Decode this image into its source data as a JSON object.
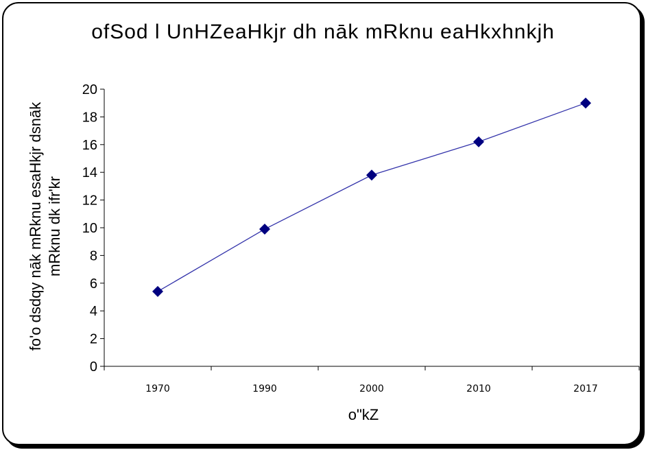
{
  "chart_data": {
    "type": "line",
    "title": "ofSod l UnHZeaHkjr dh nāk mRknu eaHkxhnkjh",
    "xlabel": "o\"kZ",
    "ylabel_lines": [
      "fo'o dsdqy nāk mRknu esaHkjr dsnāk",
      "mRknu dk ifr'kr"
    ],
    "categories": [
      "1970",
      "1990",
      "2000",
      "2010",
      "2017"
    ],
    "series": [
      {
        "values": [
          5.4,
          9.9,
          13.8,
          16.2,
          19.0
        ]
      }
    ],
    "ylim": [
      0,
      20
    ],
    "yticks": [
      0,
      2,
      4,
      6,
      8,
      10,
      12,
      14,
      16,
      18,
      20
    ],
    "grid": false,
    "line_color": "#3333aa",
    "marker_color": "#000080",
    "marker": "diamond"
  }
}
